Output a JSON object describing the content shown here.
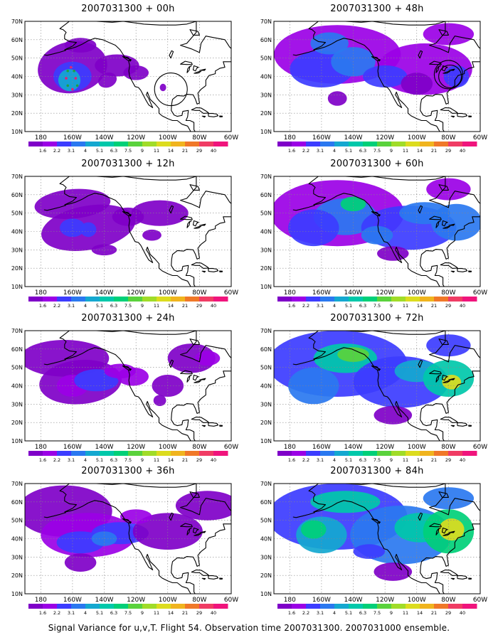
{
  "figure": {
    "caption": "Signal Variance for u,v,T. Flight 54. Observation time 2007031300. 2007031000 ensemble."
  },
  "axes": {
    "lat_labels": [
      "70N",
      "60N",
      "50N",
      "40N",
      "30N",
      "20N",
      "10N"
    ],
    "lon_labels": [
      "180",
      "160W",
      "140W",
      "120W",
      "100W",
      "80W",
      "60W"
    ]
  },
  "colorbar": {
    "labels": [
      "1.6",
      "2.2",
      "3.1",
      "4",
      "5.1",
      "6.3",
      "7.5",
      "9",
      "11",
      "14",
      "21",
      "29",
      "40"
    ],
    "colors": [
      "#7f00c8",
      "#9b00e6",
      "#3c3cff",
      "#2a78f0",
      "#14a8d0",
      "#00c8aa",
      "#00d078",
      "#5ad23c",
      "#a0dc28",
      "#dcdc1e",
      "#f0b41e",
      "#f07828",
      "#f03c64",
      "#f0147c"
    ]
  },
  "panels": [
    {
      "title": "2007031300 + 00h",
      "level": 0
    },
    {
      "title": "2007031300 + 12h",
      "level": 1
    },
    {
      "title": "2007031300 + 24h",
      "level": 2
    },
    {
      "title": "2007031300 + 36h",
      "level": 3
    },
    {
      "title": "2007031300 + 48h",
      "level": 4
    },
    {
      "title": "2007031300 + 60h",
      "level": 5
    },
    {
      "title": "2007031300 + 72h",
      "level": 6
    },
    {
      "title": "2007031300 + 84h",
      "level": 7
    }
  ]
}
